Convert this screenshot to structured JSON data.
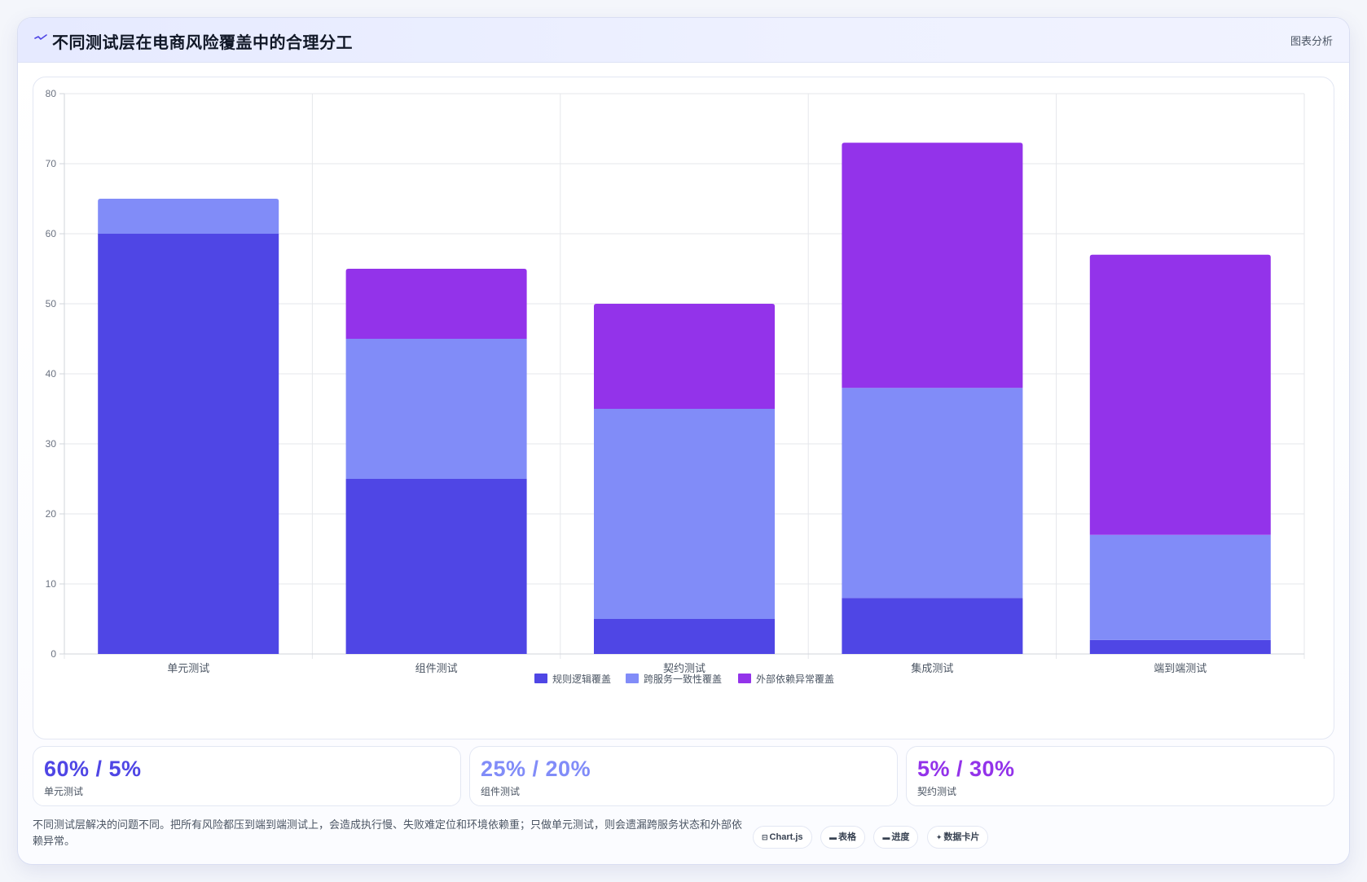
{
  "header": {
    "title": "不同测试层在电商风险覆盖中的合理分工",
    "tag": "图表分析",
    "icon": "line-chart-icon"
  },
  "chart_data": {
    "type": "bar",
    "stacked": true,
    "categories": [
      "单元测试",
      "组件测试",
      "契约测试",
      "集成测试",
      "端到端测试"
    ],
    "series": [
      {
        "name": "规则逻辑覆盖",
        "color": "#4f46e5",
        "values": [
          60,
          25,
          5,
          8,
          2
        ]
      },
      {
        "name": "跨服务一致性覆盖",
        "color": "#818cf8",
        "values": [
          5,
          20,
          30,
          30,
          15
        ]
      },
      {
        "name": "外部依赖异常覆盖",
        "color": "#9333ea",
        "values": [
          0,
          10,
          15,
          35,
          40
        ]
      }
    ],
    "ylim": [
      0,
      80
    ],
    "yticks": [
      0,
      10,
      20,
      30,
      40,
      50,
      60,
      70,
      80
    ],
    "grid": true,
    "legend": "bottom"
  },
  "stats": [
    {
      "value": "60% / 5%",
      "label": "单元测试",
      "color": "#4f46e5"
    },
    {
      "value": "25% / 20%",
      "label": "组件测试",
      "color": "#818cf8"
    },
    {
      "value": "5% / 30%",
      "label": "契约测试",
      "color": "#9333ea"
    }
  ],
  "footer": {
    "note": "不同测试层解决的问题不同。把所有风险都压到端到端测试上，会造成执行慢、失败难定位和环境依赖重；只做单元测试，则会遗漏跨服务状态和外部依赖异常。",
    "chips": [
      {
        "icon": "⊟",
        "icon_name": "chart-icon",
        "label": "Chart.js"
      },
      {
        "icon": "▬",
        "icon_name": "table-icon",
        "label": "表格"
      },
      {
        "icon": "▬",
        "icon_name": "progress-icon",
        "label": "进度"
      },
      {
        "icon": "✦",
        "icon_name": "data-card-icon",
        "label": "数据卡片"
      }
    ]
  }
}
